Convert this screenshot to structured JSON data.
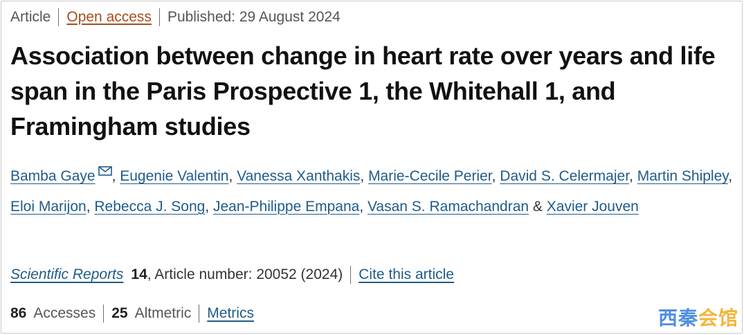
{
  "meta": {
    "type": "Article",
    "access": "Open access",
    "published": "Published: 29 August 2024"
  },
  "title": "Association between change in heart rate over years and life span in the Paris Prospective 1, the Whitehall 1, and Framingham studies",
  "authors": [
    "Bamba Gaye",
    "Eugenie Valentin",
    "Vanessa Xanthakis",
    "Marie-Cecile Perier",
    "David S. Celermajer",
    "Martin Shipley",
    "Eloi Marijon",
    "Rebecca J. Song",
    "Jean-Philippe Empana",
    "Vasan S. Ramachandran",
    "Xavier Jouven"
  ],
  "author_separator": ", ",
  "author_last_separator": " & ",
  "mail_icon": "mail-icon",
  "citation": {
    "journal": "Scientific Reports",
    "volume": "14",
    "article_number": ", Article number: 20052 (2024)",
    "cite_link": "Cite this article"
  },
  "metrics": {
    "accesses_count": "86",
    "accesses_label": "Accesses",
    "altmetric_count": "25",
    "altmetric_label": "Altmetric",
    "metrics_link": "Metrics"
  },
  "watermark": {
    "part1": "西秦",
    "part2": "会馆"
  },
  "colors": {
    "link": "#1f5b8a",
    "open_access": "#a64d1e",
    "watermark_blue": "#4f8fe0",
    "watermark_gold": "#f3b53b"
  }
}
